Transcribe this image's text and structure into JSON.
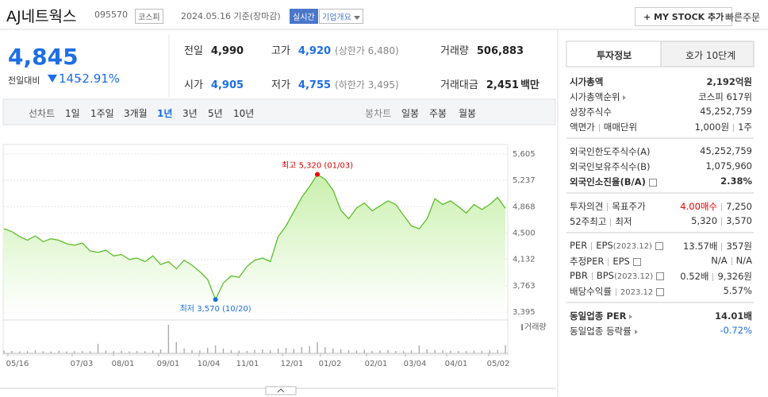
{
  "header": {
    "name": "AJ네트웍스",
    "code": "095570",
    "market": "코스피",
    "date": "2024.05.16 기준(장마감)",
    "realtime": "실시간",
    "company_info": "기업개요",
    "my_stock": "+ MY STOCK 추가",
    "quick_order": "빠른주문"
  },
  "summary": {
    "price": "4,845",
    "change_label": "전일대비",
    "change": "145",
    "change_rate": "-2.91%",
    "items": [
      {
        "label": "전일",
        "value": "4,990"
      },
      {
        "label": "고가",
        "value": "4,920",
        "note": "(상한가 6,480)"
      },
      {
        "label": "거래량",
        "value": "506,883"
      },
      {
        "label": "시가",
        "value": "4,905"
      },
      {
        "label": "저가",
        "value": "4,755",
        "note": "(하한가 3,495)"
      },
      {
        "label": "거래대금",
        "value": "2,451",
        "unit": "백만"
      }
    ]
  },
  "tabs": {
    "line_chart": "선차트",
    "periods": [
      "1일",
      "1주일",
      "3개월",
      "1년",
      "3년",
      "5년",
      "10년"
    ],
    "selected": 3,
    "candle_chart": "봉차트",
    "candles": [
      "일봉",
      "주봉",
      "월봉"
    ]
  },
  "chart_data": {
    "type": "area",
    "color": "#5cbf2a",
    "fill": "#c9f0ad",
    "values": [
      4560,
      4520,
      4450,
      4400,
      4460,
      4380,
      4420,
      4400,
      4350,
      4330,
      4360,
      4250,
      4230,
      4260,
      4180,
      4200,
      4130,
      4150,
      4100,
      4180,
      4060,
      4100,
      4000,
      4120,
      4050,
      3960,
      3850,
      3570,
      3800,
      3900,
      3880,
      4030,
      4120,
      4150,
      4100,
      4450,
      4600,
      4800,
      5000,
      5150,
      5320,
      5250,
      5100,
      4820,
      4700,
      4850,
      4920,
      4810,
      4880,
      4950,
      4900,
      4750,
      4600,
      4560,
      4700,
      4980,
      4900,
      4950,
      4870,
      4780,
      4900,
      4830,
      4900,
      5000,
      4845
    ],
    "volume": [
      180000,
      150000,
      120000,
      140000,
      200000,
      130000,
      110000,
      160000,
      120000,
      140000,
      150000,
      130000,
      600000,
      180000,
      140000,
      160000,
      120000,
      150000,
      130000,
      180000,
      250000,
      1800000,
      700000,
      300000,
      200000,
      180000,
      350000,
      500000,
      300000,
      200000,
      180000,
      160000,
      220000,
      250000,
      200000,
      300000,
      350000,
      280000,
      400000,
      450000,
      700000,
      400000,
      300000,
      250000,
      200000,
      180000,
      220000,
      160000,
      180000,
      200000,
      150000,
      140000,
      180000,
      500000,
      250000,
      200000,
      180000,
      160000,
      150000,
      140000,
      180000,
      160000,
      200000,
      220000,
      506883
    ],
    "ylim": [
      3395,
      5605
    ],
    "yticks": [
      {
        "value": 5605,
        "label": "5,605"
      },
      {
        "value": 5237,
        "label": "5,237"
      },
      {
        "value": 4868,
        "label": "4,868"
      },
      {
        "value": 4500,
        "label": "4,500"
      },
      {
        "value": 4132,
        "label": "4,132"
      },
      {
        "value": 3763,
        "label": "3,763"
      },
      {
        "value": 3395,
        "label": "3,395"
      }
    ],
    "x_labels": [
      "05/16",
      "07/03",
      "08/01",
      "09/01",
      "10/04",
      "11/01",
      "12/01",
      "01/02",
      "02/01",
      "03/04",
      "04/01",
      "05/02"
    ],
    "high_label": "최고 5,320 (01/03)",
    "low_label": "최저 3,570 (10/20)",
    "volume_label": "거래량",
    "grid": true
  },
  "info": {
    "tabs": [
      "투자정보",
      "호가 10단계"
    ],
    "groups": [
      [
        {
          "labels": [
            "시가총액"
          ],
          "values": [
            "2,192억원"
          ],
          "bold": true
        },
        {
          "labels": [
            "시가총액순위"
          ],
          "arrow": true,
          "values": [
            "코스피 617위"
          ]
        },
        {
          "labels": [
            "상장주식수"
          ],
          "values": [
            "45,252,759"
          ]
        },
        {
          "labels": [
            "액면가",
            "매매단위"
          ],
          "values": [
            "1,000원",
            "1주"
          ]
        }
      ],
      [
        {
          "labels": [
            "외국인한도주식수(A)"
          ],
          "values": [
            "45,252,759"
          ]
        },
        {
          "labels": [
            "외국인보유주식수(B)"
          ],
          "values": [
            "1,075,960"
          ]
        },
        {
          "labels": [
            "외국인소진율(B/A)"
          ],
          "help": true,
          "values": [
            "2.38%"
          ],
          "bold": true
        }
      ],
      [
        {
          "labels": [
            "투자의견",
            "목표주가"
          ],
          "values": [
            "4.00매수",
            "7,250"
          ],
          "tone": "red"
        },
        {
          "labels": [
            "52주최고",
            "최저"
          ],
          "values": [
            "5,320",
            "3,570"
          ]
        }
      ],
      [
        {
          "labels": [
            "PER",
            "EPS"
          ],
          "sub": "(2023.12)",
          "help": true,
          "values": [
            "13.57배",
            "357원"
          ]
        },
        {
          "labels": [
            "추정PER",
            "EPS"
          ],
          "help": true,
          "values": [
            "N/A",
            "N/A"
          ]
        },
        {
          "labels": [
            "PBR",
            "BPS"
          ],
          "sub": "(2023.12)",
          "help": true,
          "values": [
            "0.52배",
            "9,326원"
          ]
        },
        {
          "labels": [
            "배당수익률",
            "2023.12"
          ],
          "help": true,
          "values": [
            "5.57%"
          ]
        }
      ],
      [
        {
          "labels": [
            "동일업종 PER"
          ],
          "arrow": true,
          "values": [
            "14.01배"
          ],
          "bold": true
        },
        {
          "labels": [
            "동일업종 등락률"
          ],
          "arrow": true,
          "values": [
            "-0.72%"
          ],
          "tone": "blue"
        }
      ]
    ]
  }
}
